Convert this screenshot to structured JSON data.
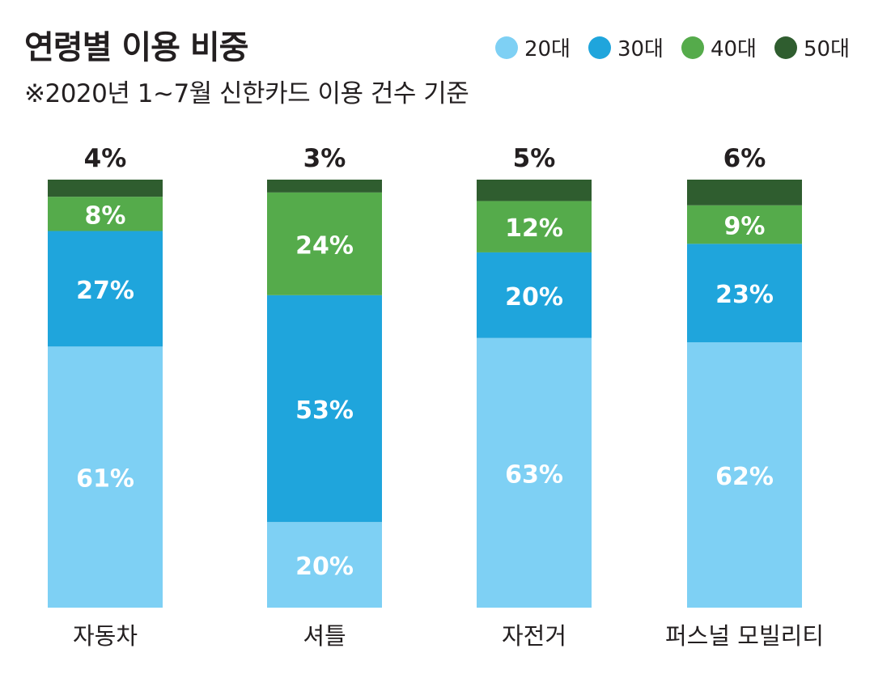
{
  "chart_data": {
    "type": "bar",
    "stacked": true,
    "normalized_percent": true,
    "title": "연령별 이용 비중",
    "subtitle": "※2020년 1~7월 신한카드 이용 건수 기준",
    "categories": [
      "자동차",
      "셔틀",
      "자전거",
      "퍼스널 모빌리티"
    ],
    "series": [
      {
        "name": "20대",
        "color": "#7ed0f4",
        "values": [
          61,
          20,
          63,
          62
        ],
        "labels": [
          "61%",
          "20%",
          "63%",
          "62%"
        ]
      },
      {
        "name": "30대",
        "color": "#1fa5dc",
        "values": [
          27,
          53,
          20,
          23
        ],
        "labels": [
          "27%",
          "53%",
          "20%",
          "23%"
        ]
      },
      {
        "name": "40대",
        "color": "#55ab4b",
        "values": [
          8,
          24,
          12,
          9
        ],
        "labels": [
          "8%",
          "24%",
          "12%",
          "9%"
        ]
      },
      {
        "name": "50대",
        "color": "#2f5d2f",
        "values": [
          4,
          3,
          5,
          6
        ],
        "labels": [
          "4%",
          "3%",
          "5%",
          "6%"
        ]
      }
    ],
    "ylim": [
      0,
      100
    ],
    "legend_position": "top-right",
    "grid": false,
    "xlabel": "",
    "ylabel": ""
  }
}
